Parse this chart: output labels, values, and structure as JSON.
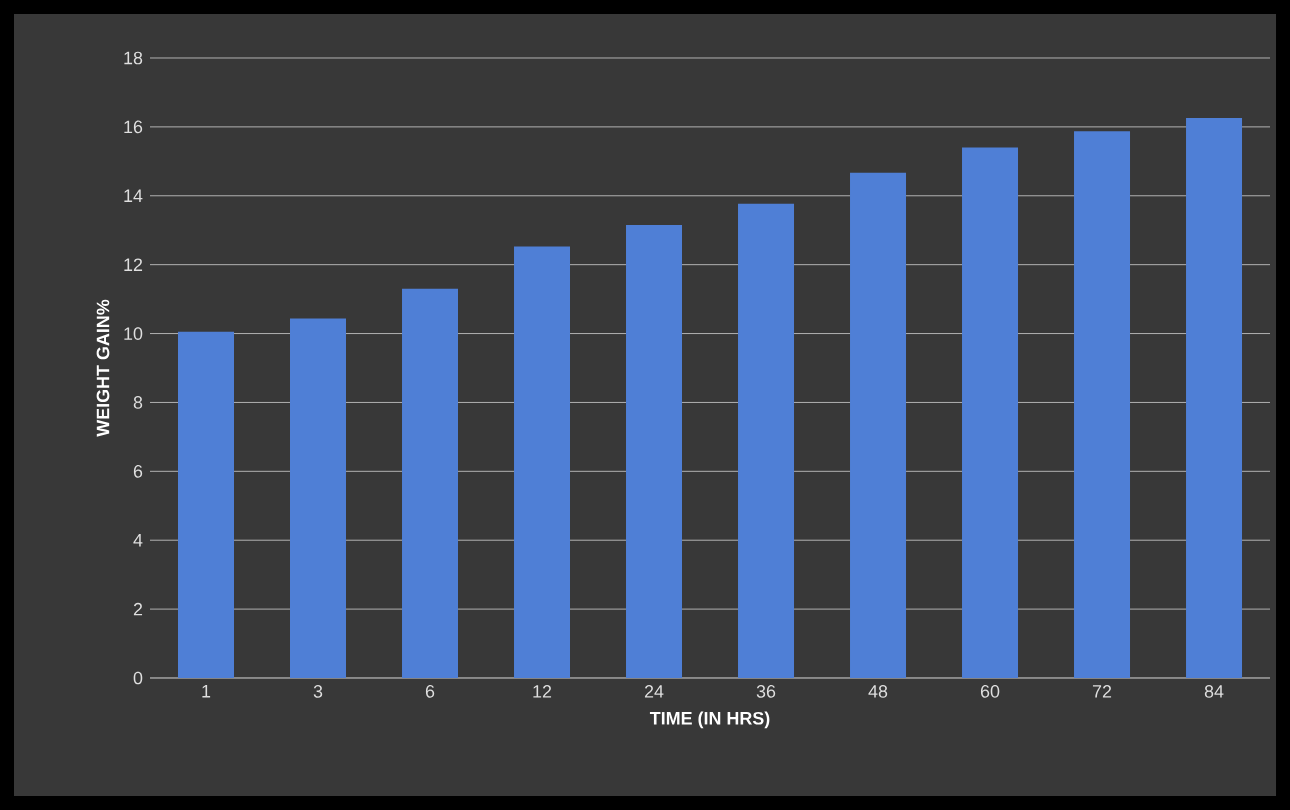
{
  "chart_data": {
    "type": "bar",
    "xlabel": "TIME (IN HRS)",
    "ylabel": "WEIGHT GAIN%",
    "categories": [
      "1",
      "3",
      "6",
      "12",
      "24",
      "36",
      "48",
      "60",
      "72",
      "84"
    ],
    "values": [
      10.05,
      10.44,
      11.3,
      12.53,
      13.15,
      13.77,
      14.67,
      15.4,
      15.87,
      16.26
    ],
    "color": "#4f7fd6",
    "ylim": [
      0,
      18
    ],
    "yticks": [
      0,
      2,
      4,
      6,
      8,
      10,
      12,
      14,
      16,
      18
    ],
    "grid": "y"
  }
}
